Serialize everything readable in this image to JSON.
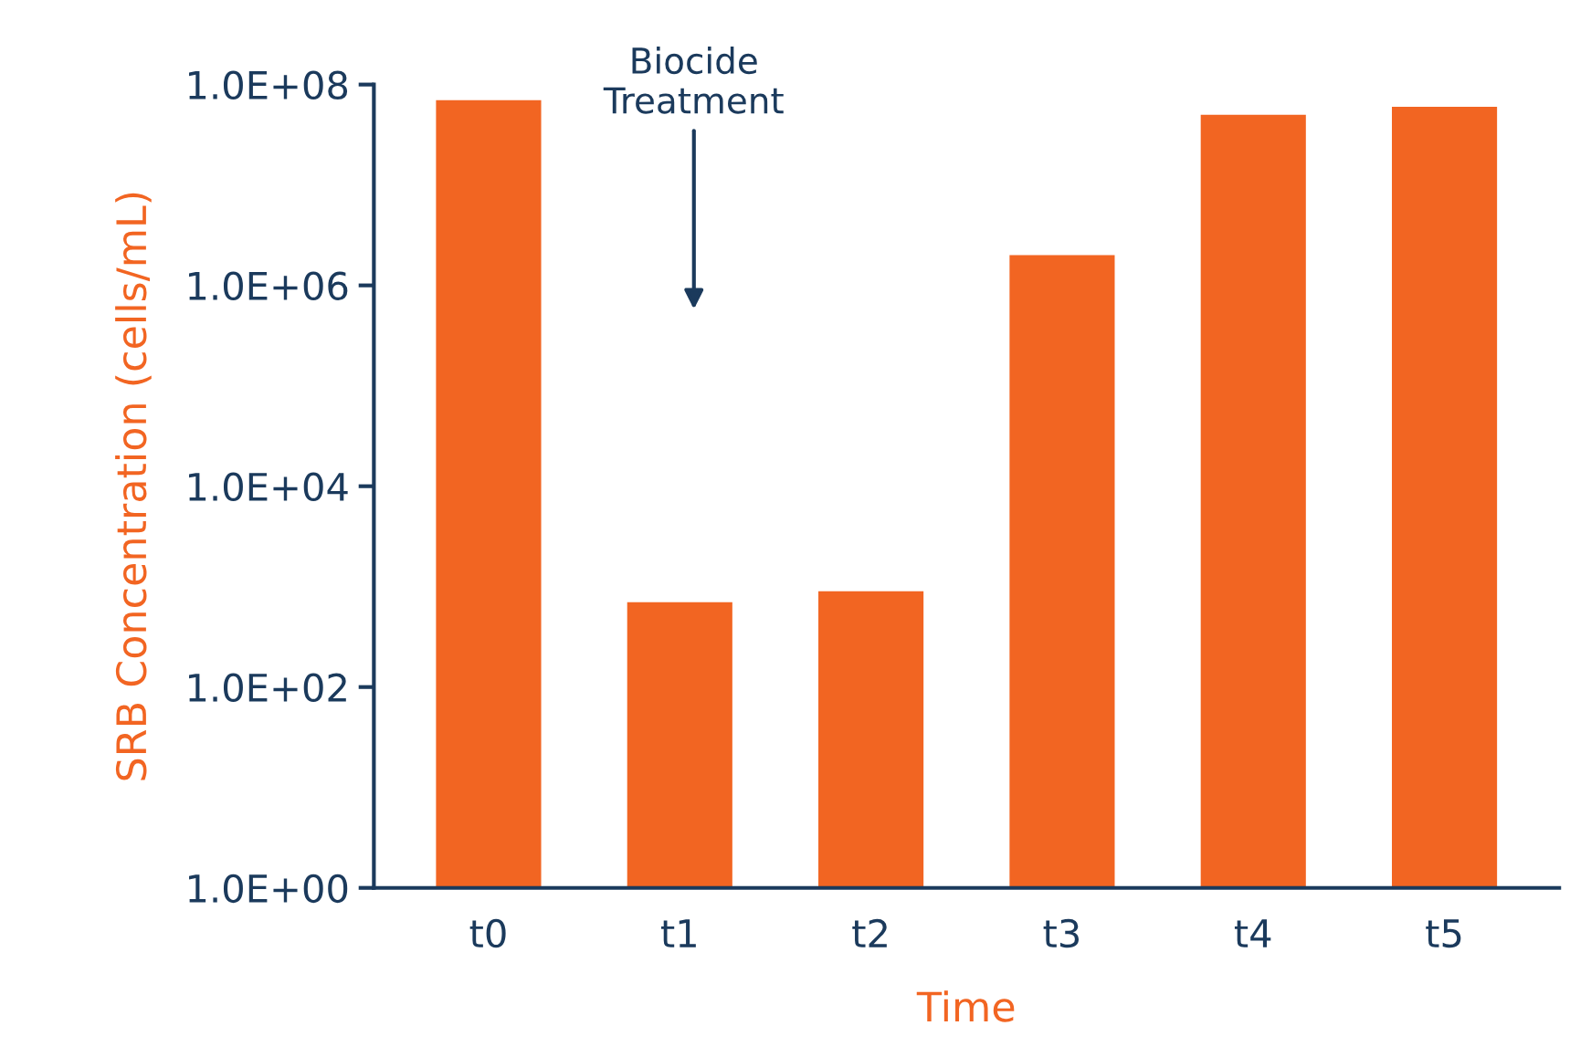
{
  "chart_data": {
    "type": "bar",
    "xlabel": "Time",
    "ylabel": "SRB Concentration (cells/mL)",
    "categories": [
      "t0",
      "t1",
      "t2",
      "t3",
      "t4",
      "t5"
    ],
    "values": [
      70000000,
      700,
      900,
      2000000,
      50000000,
      60000000
    ],
    "color": "#f26522",
    "log": "y",
    "ylim": [
      1,
      100000000
    ],
    "yticks": [
      {
        "value": 1,
        "label": "1.0E+00"
      },
      {
        "value": 100,
        "label": "1.0E+02"
      },
      {
        "value": 10000,
        "label": "1.0E+04"
      },
      {
        "value": 1000000,
        "label": "1.0E+06"
      },
      {
        "value": 100000000,
        "label": "1.0E+08"
      }
    ],
    "grid": false,
    "legend": false,
    "annotations": [
      "Biocide\nTreatment"
    ]
  }
}
